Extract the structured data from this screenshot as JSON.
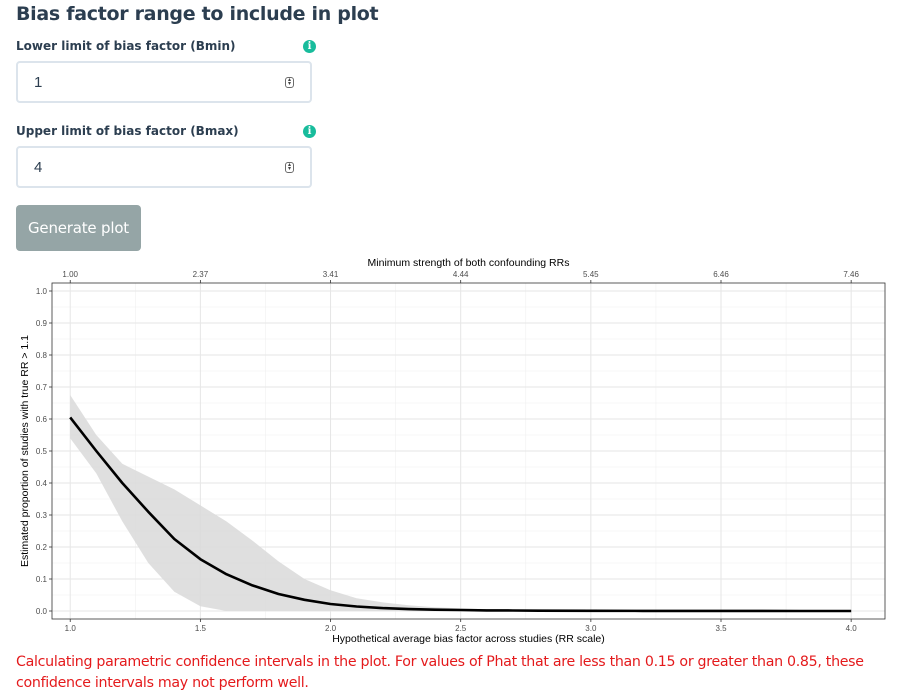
{
  "section": {
    "title": "Bias factor range to include in plot"
  },
  "bmin": {
    "label": "Lower limit of bias factor (Bmin)",
    "value": "1",
    "info_icon": "info-icon"
  },
  "bmax": {
    "label": "Upper limit of bias factor (Bmax)",
    "value": "4",
    "info_icon": "info-icon"
  },
  "generate_button": {
    "label": "Generate plot",
    "color": "#95a5a6"
  },
  "warning": {
    "text": "Calculating parametric confidence intervals in the plot. For values of Phat that are less than 0.15 or greater than 0.85, these confidence intervals may not perform well.",
    "color": "#e41a1c"
  },
  "chart_data": {
    "type": "line",
    "title": "",
    "xlabel": "Hypothetical average bias factor across studies (RR scale)",
    "ylabel": "Estimated proportion of studies with true RR > 1.1",
    "top_axis_label": "Minimum strength of both confounding RRs",
    "xlim": [
      0.93,
      4.13
    ],
    "ylim": [
      -0.025,
      1.025
    ],
    "x_ticks": [
      "1.0",
      "1.5",
      "2.0",
      "2.5",
      "3.0",
      "3.5",
      "4.0"
    ],
    "y_ticks": [
      "0.0",
      "0.1",
      "0.2",
      "0.3",
      "0.4",
      "0.5",
      "0.6",
      "0.7",
      "0.8",
      "0.9",
      "1.0"
    ],
    "top_ticks": [
      {
        "x": 1.0,
        "label": "1.00"
      },
      {
        "x": 1.5,
        "label": "2.37"
      },
      {
        "x": 2.0,
        "label": "3.41"
      },
      {
        "x": 2.5,
        "label": "4.44"
      },
      {
        "x": 3.0,
        "label": "5.45"
      },
      {
        "x": 3.5,
        "label": "6.46"
      },
      {
        "x": 4.0,
        "label": "7.46"
      }
    ],
    "grid": true,
    "series": [
      {
        "line_color": "#000000",
        "x": [
          1.0,
          1.1,
          1.2,
          1.3,
          1.4,
          1.5,
          1.6,
          1.7,
          1.8,
          1.9,
          2.0,
          2.1,
          2.2,
          2.3,
          2.4,
          2.5,
          2.6,
          2.7,
          2.8,
          3.0,
          3.2,
          3.4,
          3.6,
          3.8,
          4.0
        ],
        "y": [
          0.605,
          0.5,
          0.4,
          0.31,
          0.225,
          0.162,
          0.115,
          0.08,
          0.053,
          0.035,
          0.022,
          0.014,
          0.009,
          0.006,
          0.004,
          0.003,
          0.002,
          0.0015,
          0.001,
          0.0006,
          0.0004,
          0.0003,
          0.0002,
          0.0001,
          0.0001
        ],
        "ci_color": "#d9d9d9",
        "ci_lower": [
          0.54,
          0.43,
          0.28,
          0.15,
          0.06,
          0.015,
          0.0,
          0.0,
          0.0,
          0.0,
          0.0,
          0.0,
          0.0,
          0.0,
          0.0,
          0.0,
          0.0,
          0.0,
          0.0,
          0.0,
          0.0,
          0.0,
          0.0,
          0.0,
          0.0
        ],
        "ci_upper": [
          0.675,
          0.55,
          0.46,
          0.42,
          0.38,
          0.33,
          0.28,
          0.22,
          0.155,
          0.1,
          0.065,
          0.04,
          0.027,
          0.018,
          0.012,
          0.008,
          0.006,
          0.004,
          0.003,
          0.0018,
          0.001,
          0.0006,
          0.0004,
          0.0002,
          0.0002
        ]
      }
    ]
  }
}
